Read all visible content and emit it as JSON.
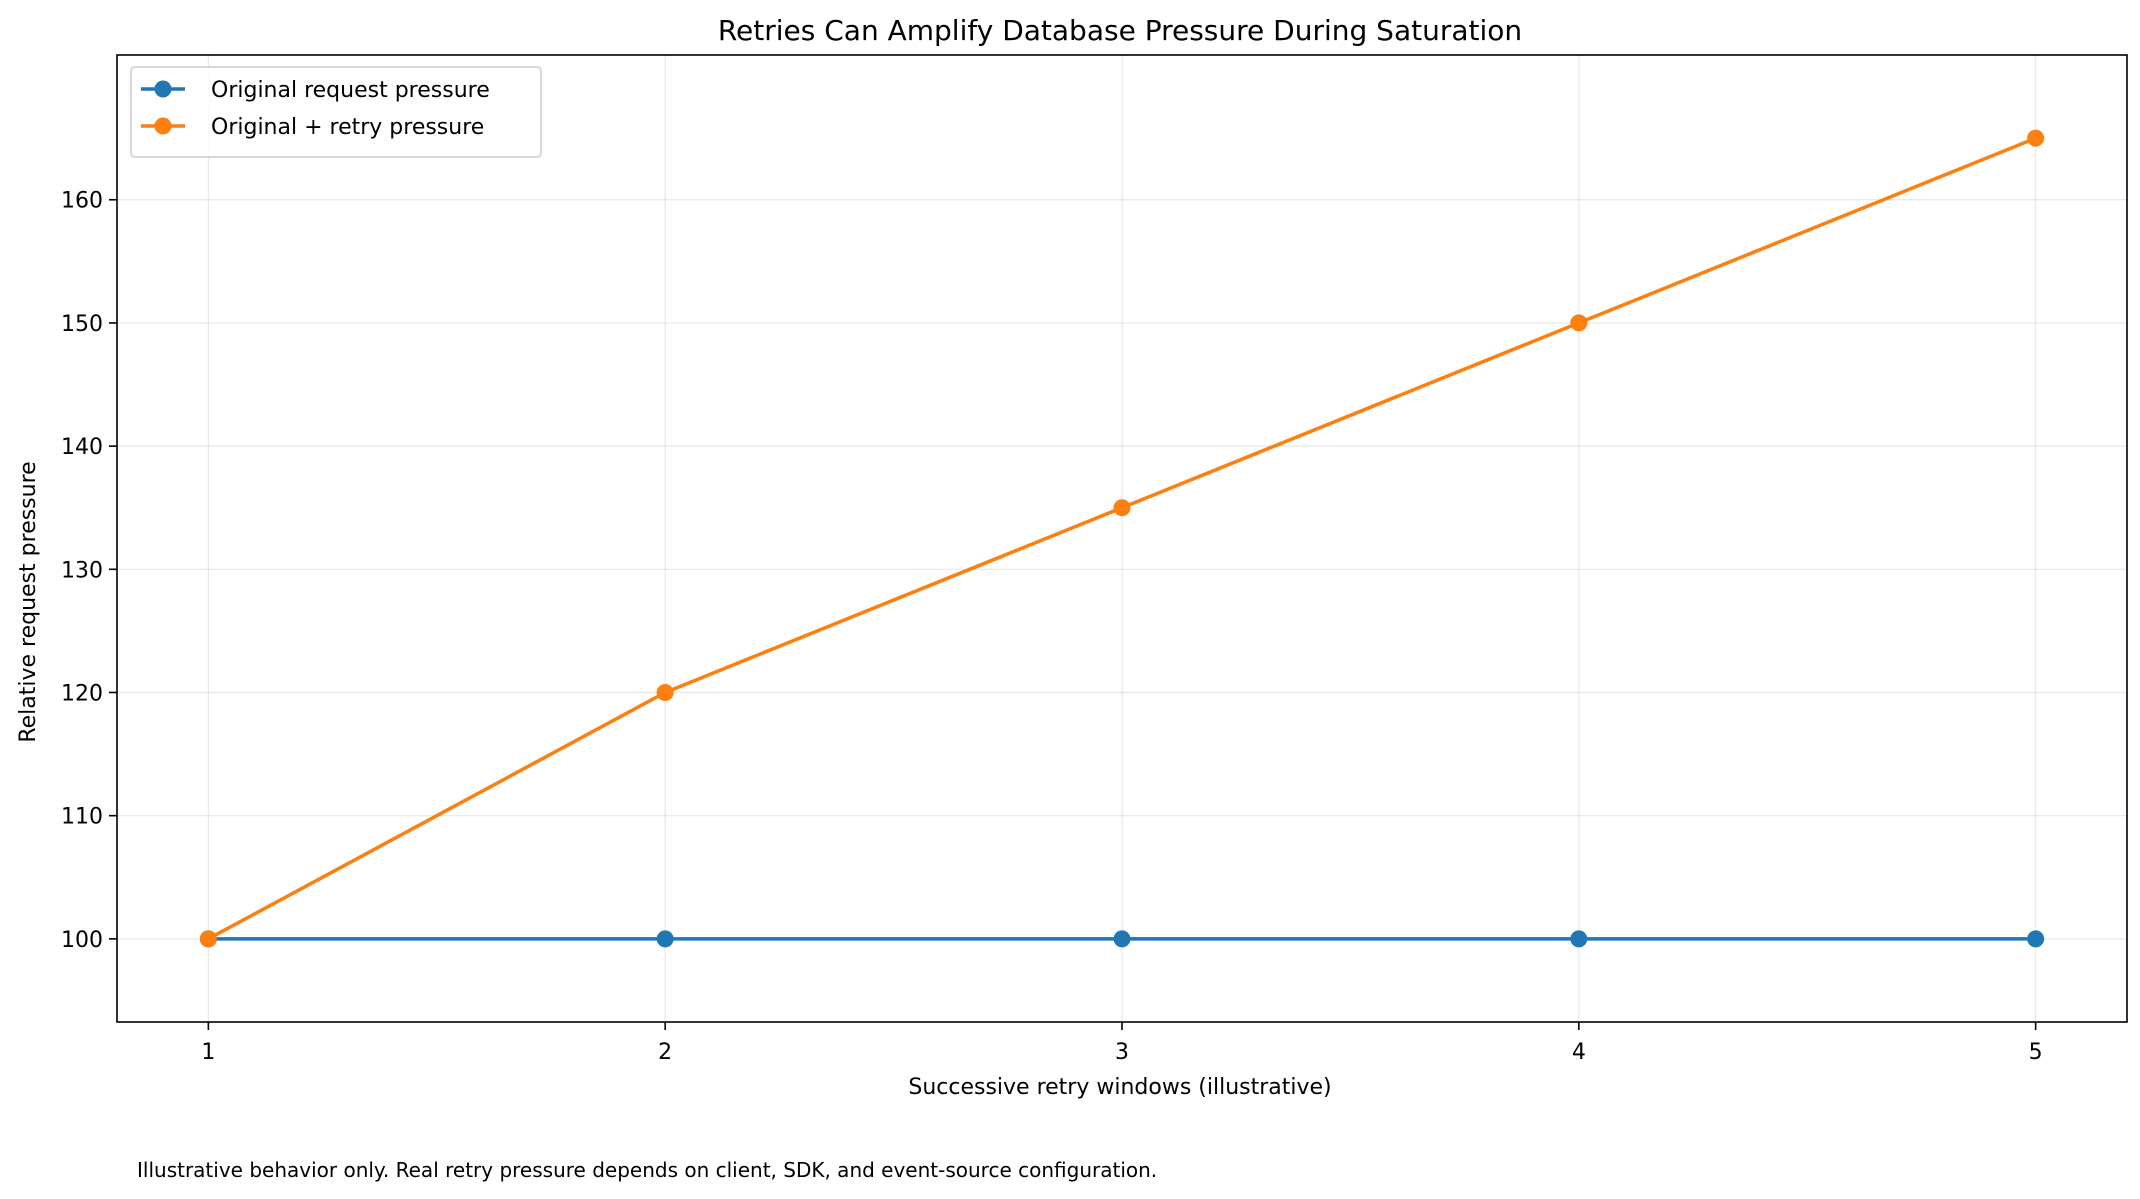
{
  "chart_data": {
    "type": "line",
    "title": "Retries Can Amplify Database Pressure During Saturation",
    "xlabel": "Successive retry windows (illustrative)",
    "ylabel": "Relative request pressure",
    "x": [
      1,
      2,
      3,
      4,
      5
    ],
    "xlim": [
      0.8,
      5.2
    ],
    "ylim": [
      93.25,
      171.75
    ],
    "xticks": [
      1,
      2,
      3,
      4,
      5
    ],
    "yticks": [
      100,
      110,
      120,
      130,
      140,
      150,
      160
    ],
    "grid": true,
    "legend_position": "top-left",
    "series": [
      {
        "name": "Original request pressure",
        "values": [
          100,
          100,
          100,
          100,
          100
        ],
        "color": "#1f77b4"
      },
      {
        "name": "Original + retry pressure",
        "values": [
          100,
          120,
          135,
          150,
          165
        ],
        "color": "#ff7f0e"
      }
    ]
  },
  "footnote": "Illustrative behavior only. Real retry pressure depends on client, SDK, and event-source configuration."
}
